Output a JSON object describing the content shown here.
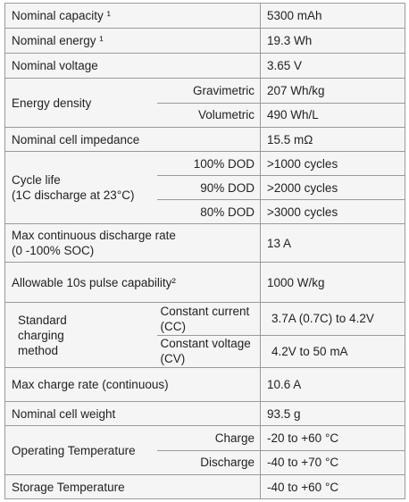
{
  "table": {
    "rows": [
      {
        "label": [
          "Nominal capacity ¹"
        ],
        "value": "5300 mAh"
      },
      {
        "label": [
          "Nominal energy ¹"
        ],
        "value": "19.3 Wh"
      },
      {
        "label": [
          "Nominal voltage"
        ],
        "value": "3.65 V"
      },
      {
        "label": [
          "Energy density"
        ],
        "sub": [
          {
            "label": "Gravimetric",
            "value": "207 Wh/kg"
          },
          {
            "label": "Volumetric",
            "value": "490 Wh/L"
          }
        ]
      },
      {
        "label": [
          "Nominal cell impedance"
        ],
        "value": "15.5 mΩ"
      },
      {
        "label": [
          "Cycle life",
          "(1C discharge at 23°C)"
        ],
        "sub": [
          {
            "label": "100% DOD",
            "value": ">1000 cycles"
          },
          {
            "label": "90% DOD",
            "value": ">2000 cycles"
          },
          {
            "label": "80% DOD",
            "value": ">3000 cycles"
          }
        ]
      },
      {
        "label": [
          "Max continuous discharge rate",
          "(0 -100% SOC)"
        ],
        "value": "13 A"
      },
      {
        "label": [
          "Allowable 10s pulse capability²"
        ],
        "value": "1000 W/kg"
      },
      {
        "label": [
          "Standard",
          "charging",
          "method"
        ],
        "sub": [
          {
            "label": "Constant current (CC)",
            "value": "3.7A (0.7C) to 4.2V"
          },
          {
            "label": "Constant voltage (CV)",
            "value": "4.2V to 50 mA"
          }
        ]
      },
      {
        "label": [
          "Max charge rate (continuous)"
        ],
        "value": "10.6 A"
      },
      {
        "label": [
          "Nominal cell weight"
        ],
        "value": "93.5 g"
      },
      {
        "label": [
          "Operating Temperature"
        ],
        "sub": [
          {
            "label": "Charge",
            "value": "-20 to +60 °C"
          },
          {
            "label": "Discharge",
            "value": "-40 to +70 °C"
          }
        ]
      },
      {
        "label": [
          "Storage Temperature"
        ],
        "value": "-40 to +60 °C"
      }
    ]
  }
}
